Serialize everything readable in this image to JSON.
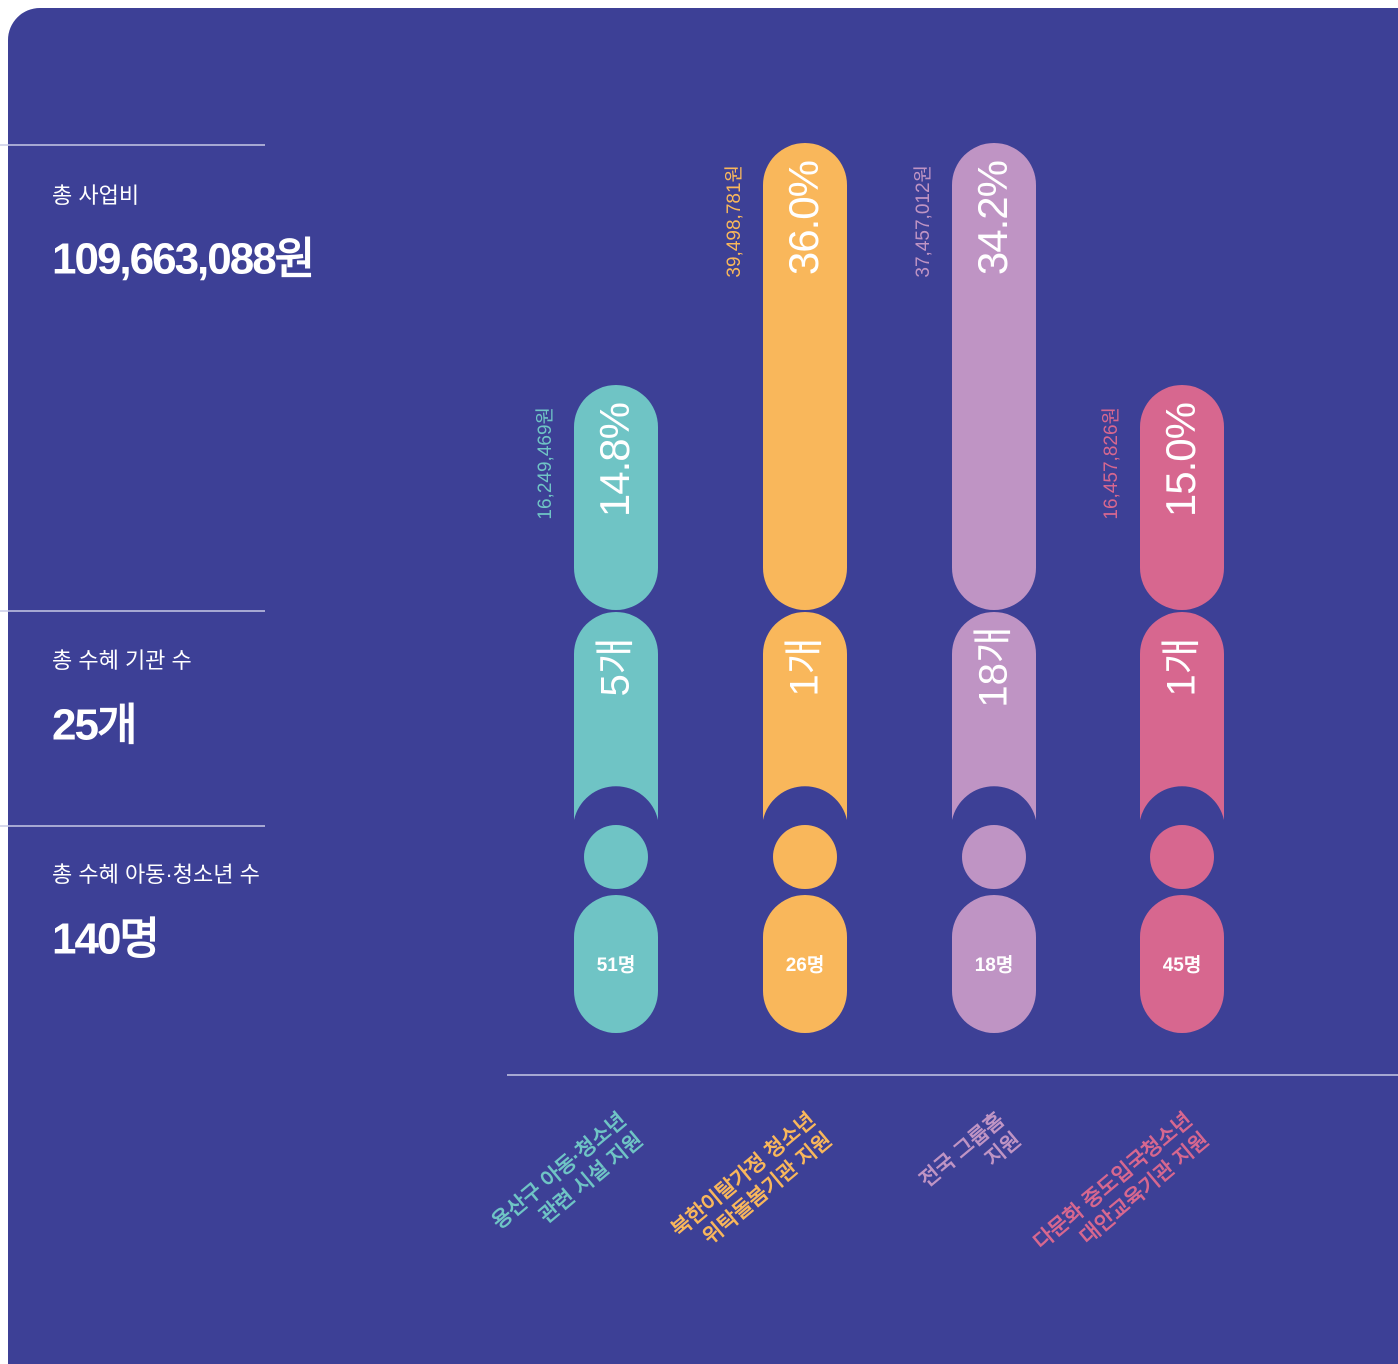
{
  "summary": [
    {
      "label": "총 사업비",
      "value": "109,663,088원"
    },
    {
      "label": "총 수혜 기관 수",
      "value": "25개"
    },
    {
      "label": "총 수혜 아동·청소년 수",
      "value": "140명"
    }
  ],
  "columns": [
    {
      "amount": "16,249,469원",
      "percent": "14.8%",
      "count": "5개",
      "people": "51명",
      "label": [
        "용산구 아동·청소년",
        "관련 시설 지원"
      ],
      "color": "#6fc4c5"
    },
    {
      "amount": "39,498,781원",
      "percent": "36.0%",
      "count": "1개",
      "people": "26명",
      "label": [
        "북한이탈가정 청소년",
        "위탁돌봄기관 지원"
      ],
      "color": "#f9b75b"
    },
    {
      "amount": "37,457,012원",
      "percent": "34.2%",
      "count": "18개",
      "people": "18명",
      "label": [
        "전국 그룹홈",
        "지원"
      ],
      "color": "#bf94c4"
    },
    {
      "amount": "16,457,826원",
      "percent": "15.0%",
      "count": "1개",
      "people": "45명",
      "label": [
        "다문화 중도입국청소년",
        "대안교육기관 지원"
      ],
      "color": "#d7678f"
    }
  ]
}
